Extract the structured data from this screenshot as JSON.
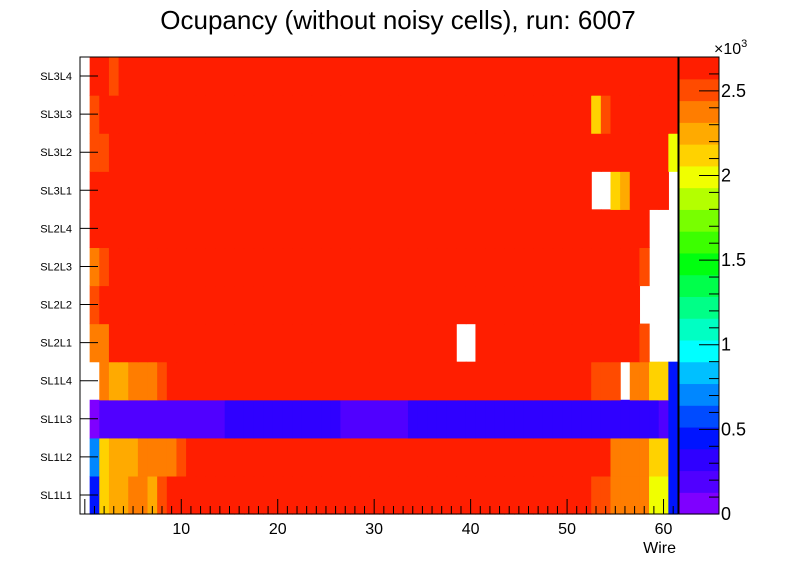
{
  "chart_data": {
    "type": "heatmap",
    "title": "Ocupancy (without noisy cells), run: 6007",
    "xlabel": "Wire",
    "ylabel": "",
    "xlim": [
      0,
      60
    ],
    "x_ticks": [
      10,
      20,
      30,
      40,
      50,
      60
    ],
    "y_categories": [
      "SL1L1",
      "SL1L2",
      "SL1L3",
      "SL1L4",
      "SL2L1",
      "SL2L2",
      "SL2L3",
      "SL2L4",
      "SL3L1",
      "SL3L2",
      "SL3L3",
      "SL3L4"
    ],
    "z_range": [
      0,
      2.7
    ],
    "z_multiplier": "×10",
    "z_exponent": "3",
    "z_ticks": [
      "0",
      "0.5",
      "1",
      "1.5",
      "2",
      "2.5"
    ],
    "z_tick_values": [
      0,
      0.5,
      1,
      1.5,
      2,
      2.5
    ],
    "palette": [
      "#7f00ff",
      "#5000ff",
      "#2f00ff",
      "#0014ff",
      "#004bff",
      "#0087ff",
      "#00c0ff",
      "#00ffff",
      "#00ffc3",
      "#00ff87",
      "#00ff4b",
      "#00ff0f",
      "#3cff00",
      "#78ff00",
      "#b4ff00",
      "#f0ff00",
      "#ffd200",
      "#ffaa00",
      "#ff7d00",
      "#ff4b00",
      "#ff1e00"
    ],
    "rows": {
      "SL1L1": "A3HIIJJIKMNNMMNMMMMPPPPPOPONNMPPPPQQPPPPOPPQPPPPLLLLLKKJJJJGG3",
      "SL1L2": "A5HIIIJJJJKMNNNNNNNOOPOOOOOPOONNNOOQQRQOOOOQQPPPPNLLLLLJJJJHH3",
      "SL1L3": "A0111111111111122222222222211111112222222222222222222222222213",
      "SL1L4": "AAJIIJJJKMNNNNNNMMMNNPOOPPPPPPNNNNNRRRRNNQQQPPPRRPLLLKKKAJJHH3",
      "SL2L1": "AJJMTTTTTTTTTTUTTTTUUUTTTTTUTTTTTTTTTSTAATTTTTTTTTTTTSRRPNKAAA",
      "SL2L2": "AKLMNRRQQTTTTTTTTTTUUTTTTUTUTTTTUTUTPPTQQSSTTTTTUTTRRRRROLAAAA",
      "SL2L3": "AJKLOSSRRSTTTUTTTTUUTTTTTTTTSTTTTUTSUTPSSSTTTTTTTSSSSSRRRMKAAA",
      "SL2L4": "AMOPRSSSSTTTUTTSTTTTTTTTTTTTTTTTTTTTSSSTTTTTTTTTTTTTTTSSSRMAAA",
      "SL3L1": "ALLNQQQQQRRQQRRQOPQQRRRRROQRRRQQQPQQPPQPPOOPPPQQOOOPPAAHIOOPNA",
      "SL3L2": "AKKMQQPPOQQPPQQQOOOQRRRPPOQRRPQQPPPSSSSRRRRRSSRRQQQRPPPOOMOPPG",
      "SL3L3": "AKMRQQPPPPOPPRRPPPRRPPPPSSSSQRSSSSSSSSSSSTSSSSSRRRPQQHKPPNOPMS",
      "SL3L4": "AMLKPPPPPPPPPPPQQQRQRQQOOPPPPPPQSQQRRTSTSRRRRSSTRSRTQRRNNOOOPL"
    },
    "letter_scale": "A=empty, 0-9 and B-U map to palette levels (0..20); each letter is one wire bin x=0..61"
  }
}
